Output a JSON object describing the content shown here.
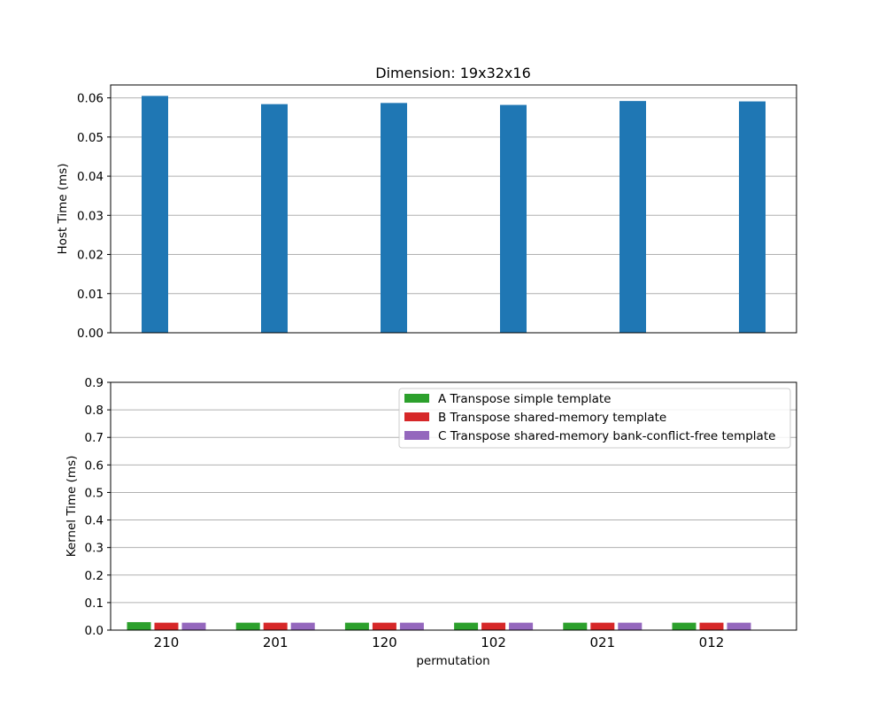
{
  "chart_data": [
    {
      "type": "bar",
      "title": "Dimension: 19x32x16",
      "xlabel": "",
      "ylabel": "Host Time (ms)",
      "categories": [
        "210",
        "201",
        "120",
        "102",
        "021",
        "012"
      ],
      "values": [
        0.0605,
        0.0584,
        0.0587,
        0.0582,
        0.0592,
        0.0591
      ],
      "ylim": [
        0,
        0.0633
      ],
      "yticks": [
        "0.00",
        "0.01",
        "0.02",
        "0.03",
        "0.04",
        "0.05",
        "0.06"
      ],
      "grid": "y",
      "colors": [
        "#1f77b4"
      ]
    },
    {
      "type": "bar",
      "title": "",
      "xlabel": "permutation",
      "ylabel": "Kernel Time (ms)",
      "categories": [
        "210",
        "201",
        "120",
        "102",
        "021",
        "012"
      ],
      "series": [
        {
          "name": "A Transpose simple template",
          "values": [
            0.029,
            0.027,
            0.027,
            0.027,
            0.027,
            0.027
          ],
          "color": "#2ca02c"
        },
        {
          "name": "B Transpose shared-memory template",
          "values": [
            0.027,
            0.027,
            0.027,
            0.027,
            0.027,
            0.027
          ],
          "color": "#d62728"
        },
        {
          "name": "C Transpose shared-memory bank-conflict-free template",
          "values": [
            0.027,
            0.027,
            0.027,
            0.027,
            0.027,
            0.027
          ],
          "color": "#9467bd"
        }
      ],
      "ylim": [
        0,
        0.9
      ],
      "yticks": [
        "0.0",
        "0.1",
        "0.2",
        "0.3",
        "0.4",
        "0.5",
        "0.6",
        "0.7",
        "0.8",
        "0.9"
      ],
      "grid": "y",
      "legend": "top-right"
    }
  ]
}
